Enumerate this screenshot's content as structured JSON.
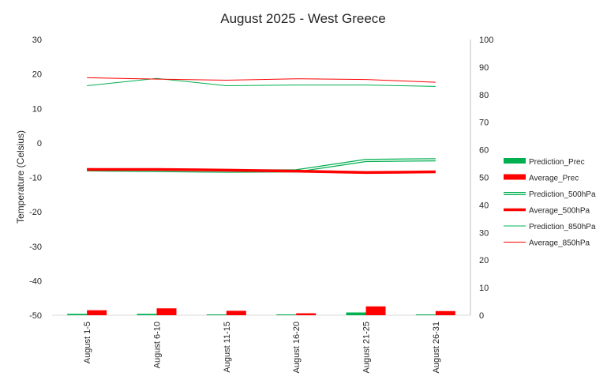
{
  "chart_data": {
    "type": "bar",
    "title": "August 2025 - West Greece",
    "ylabel": "Temperature (Celsius)",
    "xlabel": "",
    "y2label": "",
    "ylim": [
      -50,
      30
    ],
    "y2lim": [
      0,
      100
    ],
    "yticks": [
      "30",
      "20",
      "10",
      "0",
      "-10",
      "-20",
      "-30",
      "-40",
      "-50"
    ],
    "y2ticks": [
      "100",
      "90",
      "80",
      "70",
      "60",
      "50",
      "40",
      "30",
      "20",
      "10",
      "0"
    ],
    "categories": [
      "August 1-5",
      "August 6-10",
      "August 11-15",
      "August 16-20",
      "August 21-25",
      "August 26-31"
    ],
    "grid": false,
    "legend_position": "right",
    "series": [
      {
        "name": "Prediction_Prec",
        "kind": "bar",
        "axis": "right",
        "color": "#00b050",
        "values": [
          0.5,
          0.5,
          0.3,
          0.3,
          1.0,
          0.3
        ]
      },
      {
        "name": "Average_Prec",
        "kind": "bar",
        "axis": "right",
        "color": "#ff0000",
        "values": [
          1.8,
          2.5,
          1.6,
          0.7,
          3.2,
          1.5
        ]
      },
      {
        "name": "Prediction_500hPa",
        "kind": "line-double",
        "axis": "left",
        "color": "#00b050",
        "values": [
          -7.8,
          -8.0,
          -8.2,
          -8.1,
          -5.1,
          -4.9
        ]
      },
      {
        "name": "Average_500hPa",
        "kind": "line-thick",
        "axis": "left",
        "color": "#ff0000",
        "values": [
          -7.7,
          -7.7,
          -7.9,
          -8.2,
          -8.6,
          -8.4
        ]
      },
      {
        "name": "Prediction_850hPa",
        "kind": "line",
        "axis": "left",
        "color": "#00b050",
        "values": [
          16.6,
          18.7,
          16.6,
          16.8,
          16.8,
          16.4
        ]
      },
      {
        "name": "Average_850hPa",
        "kind": "line",
        "axis": "left",
        "color": "#ff0000",
        "values": [
          18.9,
          18.5,
          18.2,
          18.6,
          18.4,
          17.6
        ]
      }
    ]
  }
}
